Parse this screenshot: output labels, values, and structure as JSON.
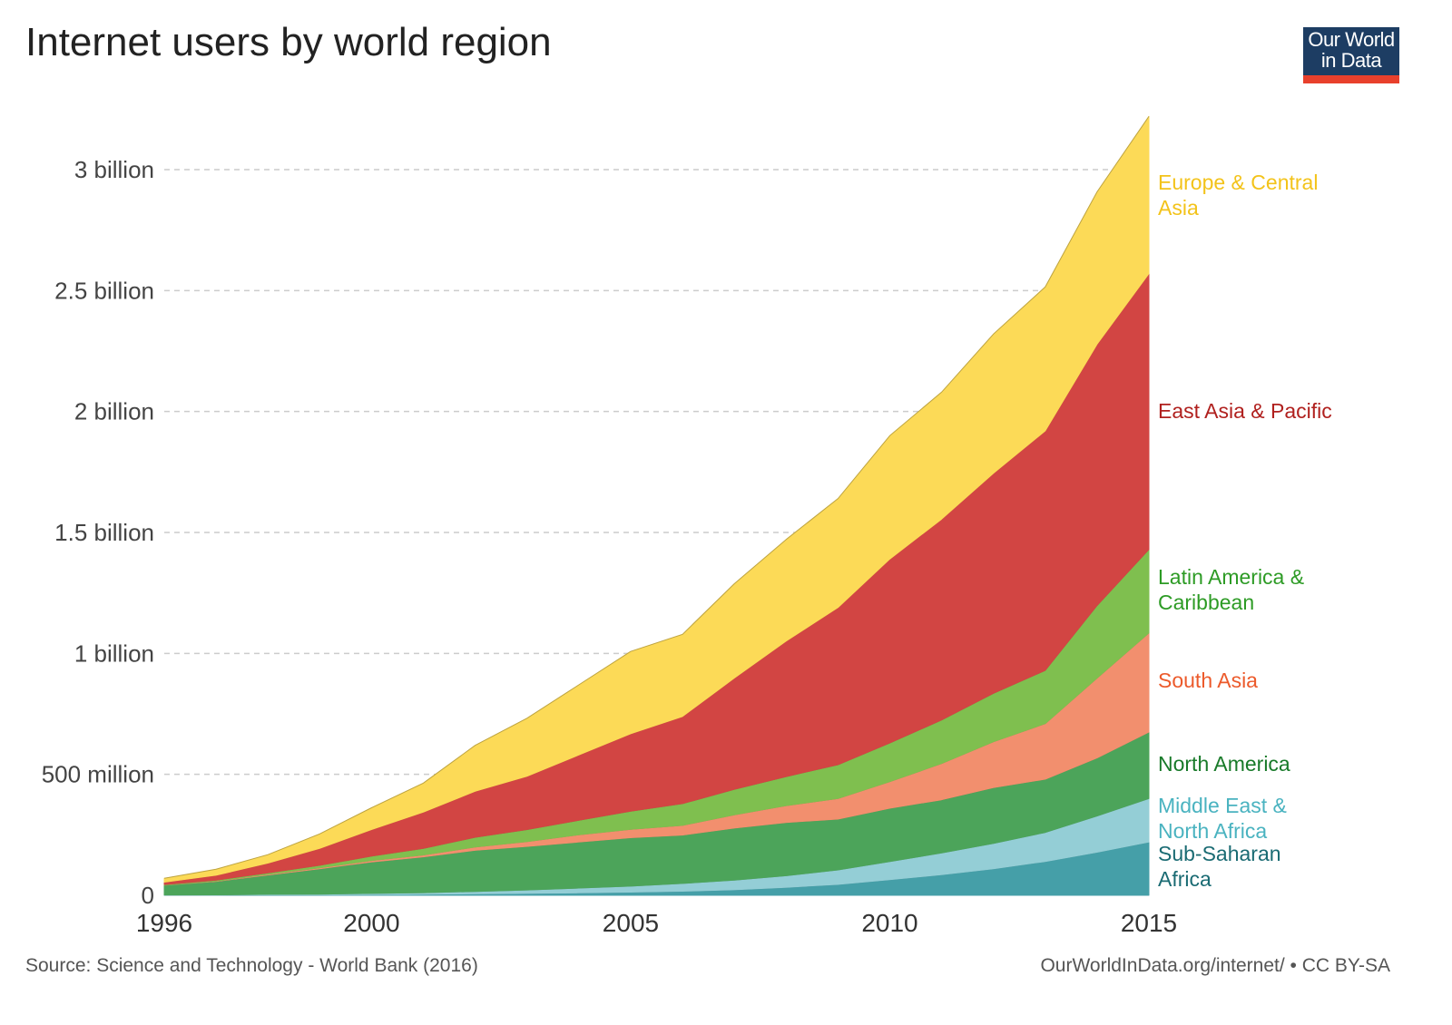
{
  "title": "Internet users by world region",
  "logo": {
    "line1": "Our World",
    "line2": "in Data"
  },
  "source": "Source: Science and Technology - World Bank (2016)",
  "license": "OurWorldInData.org/internet/ • CC BY-SA",
  "chart_data": {
    "type": "area",
    "stacked": true,
    "title": "Internet users by world region",
    "xlabel": "",
    "ylabel": "",
    "x": [
      1996,
      1997,
      1998,
      1999,
      2000,
      2001,
      2002,
      2003,
      2004,
      2005,
      2006,
      2007,
      2008,
      2009,
      2010,
      2011,
      2012,
      2013,
      2014,
      2015
    ],
    "xlim": [
      1996,
      2015
    ],
    "ylim": [
      0,
      3.22
    ],
    "y_unit": "billion",
    "xticks": [
      1996,
      2000,
      2005,
      2010,
      2015
    ],
    "yticks": [
      {
        "value": 0,
        "label": "0"
      },
      {
        "value": 0.5,
        "label": "500 million"
      },
      {
        "value": 1.0,
        "label": "1 billion"
      },
      {
        "value": 1.5,
        "label": "1.5 billion"
      },
      {
        "value": 2.0,
        "label": "2 billion"
      },
      {
        "value": 2.5,
        "label": "2.5 billion"
      },
      {
        "value": 3.0,
        "label": "3 billion"
      }
    ],
    "grid": true,
    "legend": "right-inline",
    "series": [
      {
        "name": "Sub-Saharan Africa",
        "label_lines": [
          "Sub-Saharan",
          "Africa"
        ],
        "color": "#459fa8",
        "label_color": "#1a6b73",
        "values": [
          0.001,
          0.001,
          0.002,
          0.002,
          0.003,
          0.004,
          0.006,
          0.008,
          0.01,
          0.013,
          0.017,
          0.023,
          0.033,
          0.045,
          0.065,
          0.085,
          0.11,
          0.14,
          0.178,
          0.22
        ]
      },
      {
        "name": "Middle East & North Africa",
        "label_lines": [
          "Middle East &",
          "North Africa"
        ],
        "color": "#94ced6",
        "label_color": "#4ab3c0",
        "values": [
          0.0005,
          0.001,
          0.002,
          0.003,
          0.005,
          0.007,
          0.01,
          0.014,
          0.02,
          0.025,
          0.032,
          0.04,
          0.048,
          0.06,
          0.075,
          0.09,
          0.105,
          0.12,
          0.15,
          0.18
        ]
      },
      {
        "name": "North America",
        "label_lines": [
          "North America"
        ],
        "color": "#4ca45a",
        "label_color": "#187a29",
        "values": [
          0.04,
          0.055,
          0.08,
          0.105,
          0.13,
          0.148,
          0.17,
          0.18,
          0.19,
          0.2,
          0.2,
          0.215,
          0.22,
          0.21,
          0.22,
          0.22,
          0.23,
          0.22,
          0.24,
          0.275
        ]
      },
      {
        "name": "South Asia",
        "label_lines": [
          "South Asia"
        ],
        "color": "#f28f6e",
        "label_color": "#ec5a2b",
        "values": [
          0.001,
          0.002,
          0.003,
          0.004,
          0.006,
          0.008,
          0.014,
          0.02,
          0.03,
          0.035,
          0.04,
          0.055,
          0.07,
          0.085,
          0.11,
          0.15,
          0.19,
          0.23,
          0.33,
          0.41
        ]
      },
      {
        "name": "Latin America & Caribbean",
        "label_lines": [
          "Latin America &",
          "Caribbean"
        ],
        "color": "#7fbf4f",
        "label_color": "#2d9b25",
        "values": [
          0.002,
          0.004,
          0.006,
          0.01,
          0.018,
          0.027,
          0.04,
          0.05,
          0.06,
          0.075,
          0.09,
          0.105,
          0.12,
          0.14,
          0.16,
          0.18,
          0.2,
          0.22,
          0.3,
          0.345
        ]
      },
      {
        "name": "East Asia & Pacific",
        "label_lines": [
          "East Asia & Pacific"
        ],
        "color": "#d24543",
        "label_color": "#b0201e",
        "values": [
          0.01,
          0.02,
          0.04,
          0.07,
          0.11,
          0.15,
          0.19,
          0.22,
          0.27,
          0.32,
          0.36,
          0.46,
          0.56,
          0.65,
          0.76,
          0.83,
          0.91,
          0.99,
          1.08,
          1.14
        ]
      },
      {
        "name": "Europe & Central Asia",
        "label_lines": [
          "Europe & Central",
          "Asia"
        ],
        "color": "#fcda57",
        "label_color": "#f3c31a",
        "values": [
          0.016,
          0.025,
          0.035,
          0.06,
          0.09,
          0.12,
          0.19,
          0.24,
          0.29,
          0.34,
          0.34,
          0.39,
          0.42,
          0.45,
          0.51,
          0.525,
          0.575,
          0.595,
          0.63,
          0.65
        ]
      }
    ]
  }
}
